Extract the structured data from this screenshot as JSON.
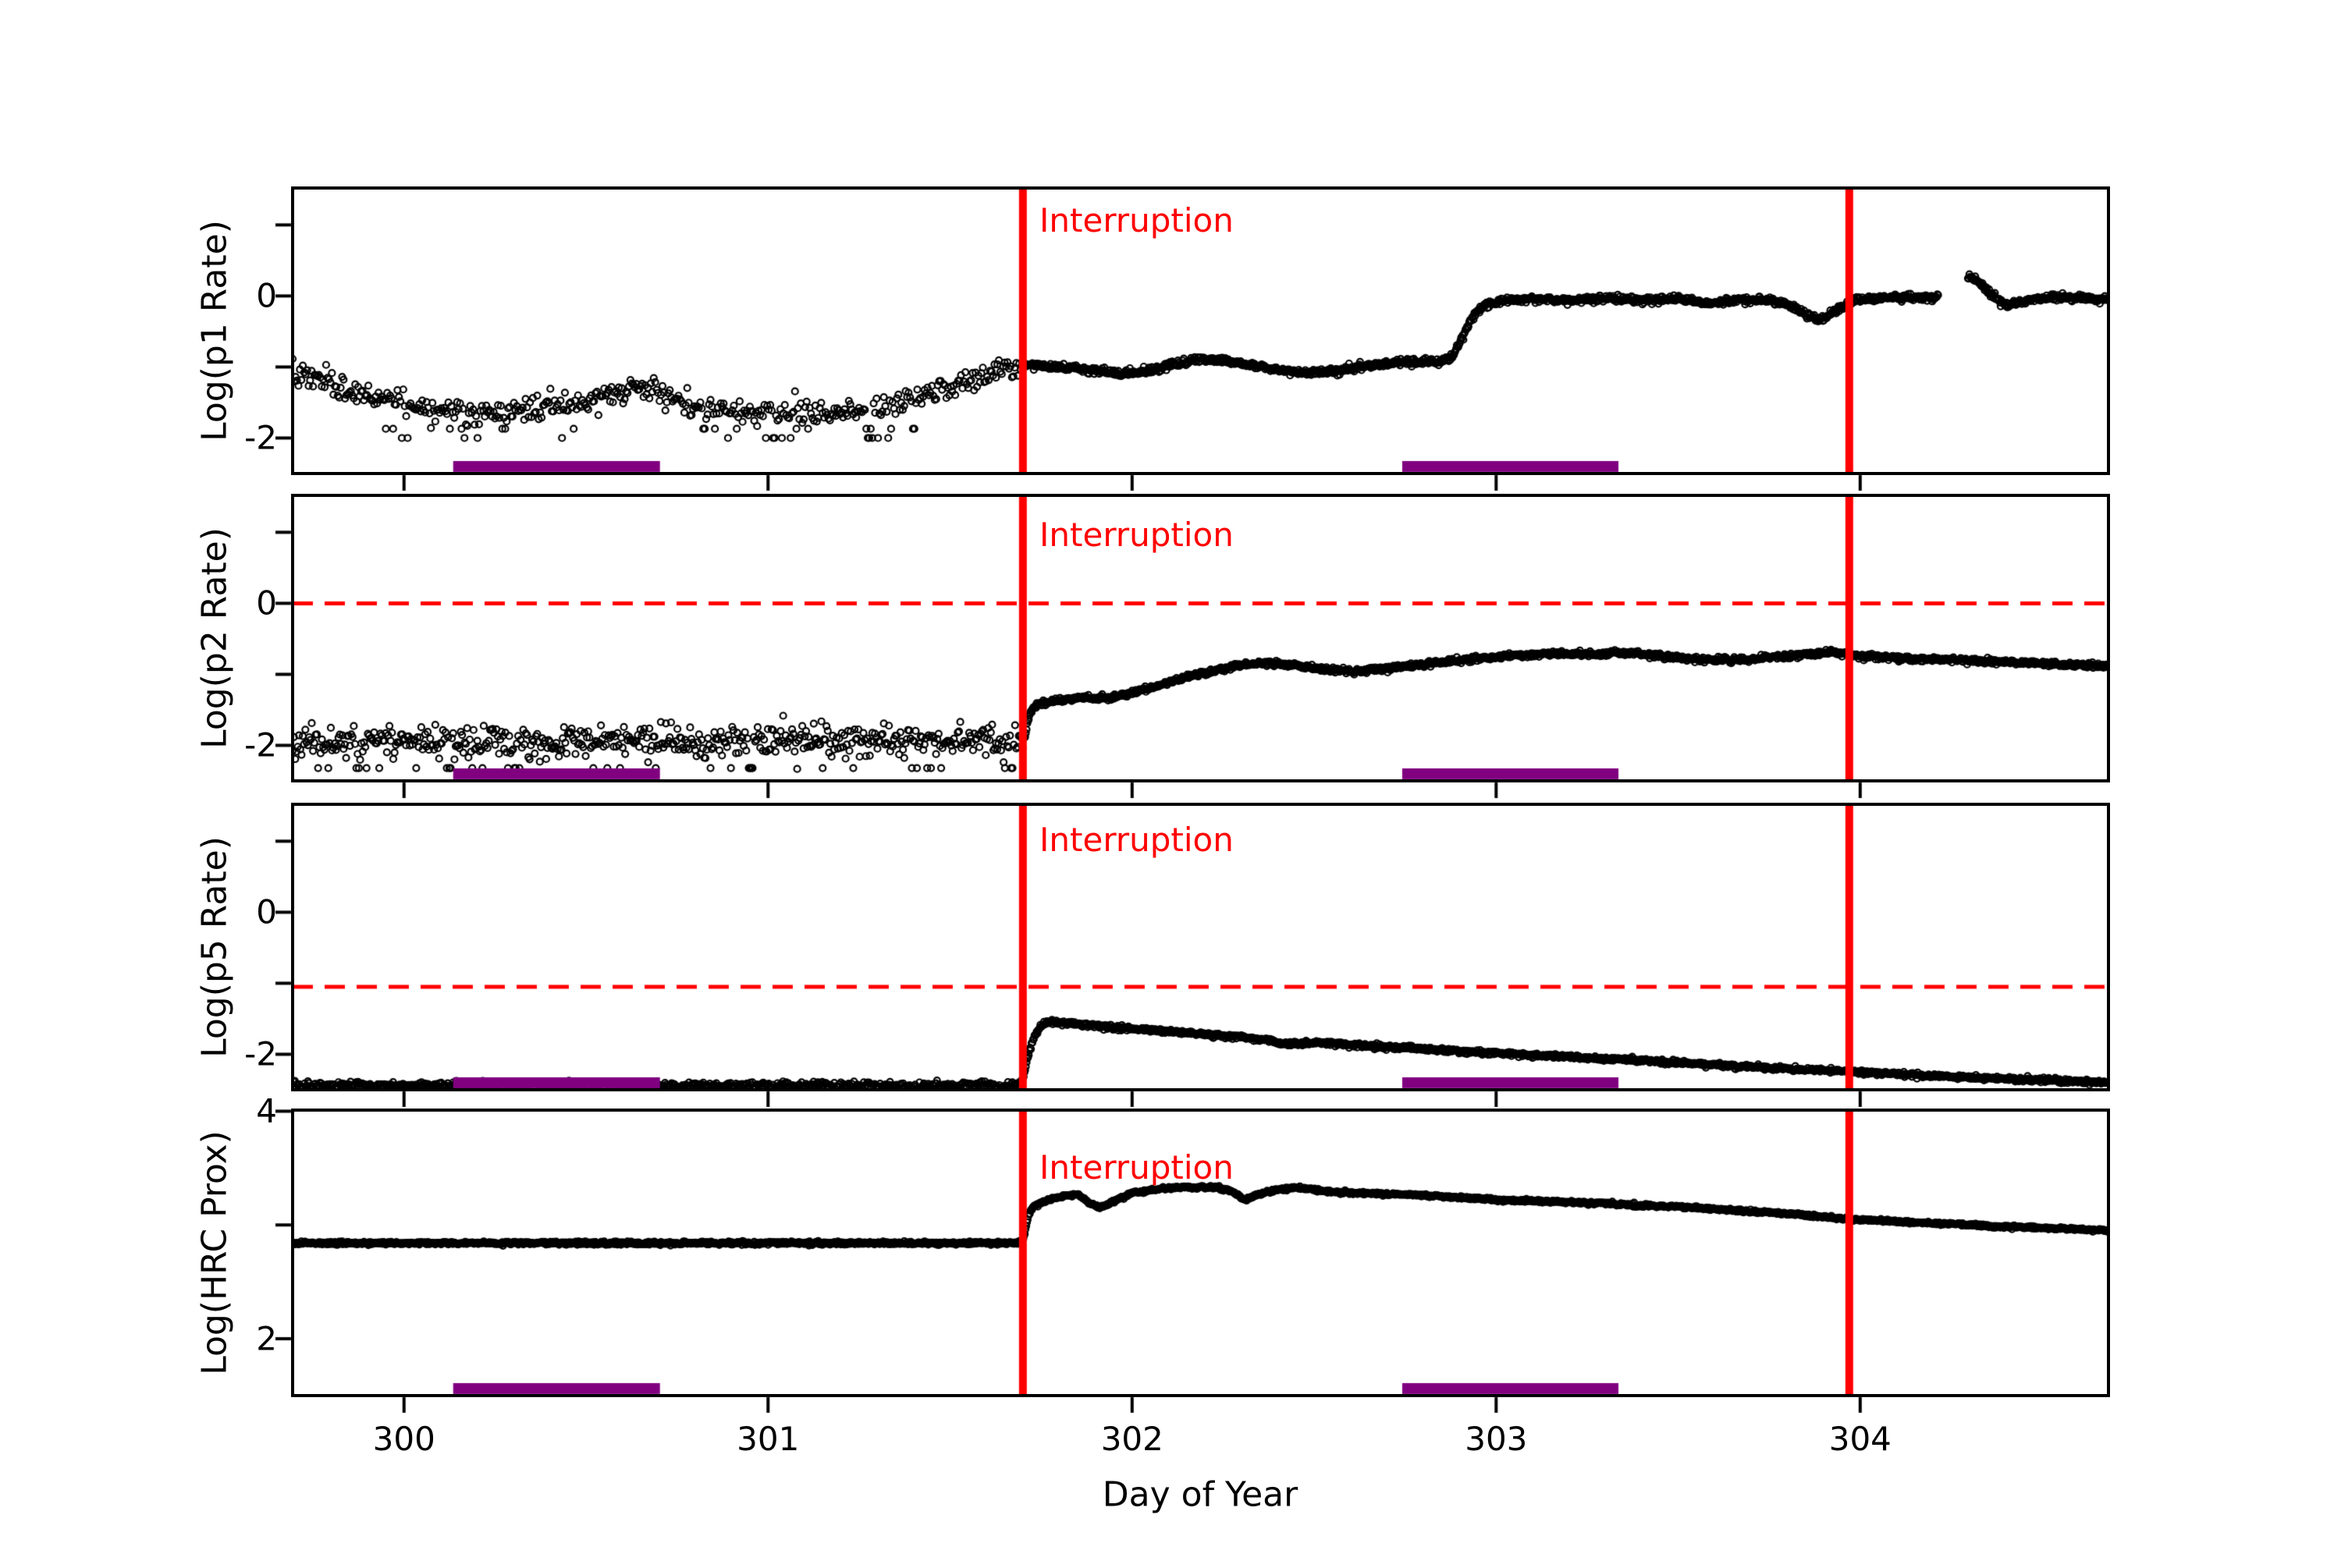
{
  "chart_data": {
    "type": "scatter",
    "title": "",
    "xlabel": "Day of Year",
    "xlim": [
      299.694,
      304.682
    ],
    "xticks": [
      {
        "v": 300,
        "label": "300"
      },
      {
        "v": 301,
        "label": "301"
      },
      {
        "v": 302,
        "label": "302"
      },
      {
        "v": 303,
        "label": "303"
      },
      {
        "v": 304,
        "label": "304"
      }
    ],
    "annotation_label": "Interruption",
    "marker_color": "#000000",
    "accent_red": "#ff0000",
    "band_color": "#800080",
    "vlines": [
      301.7,
      303.97
    ],
    "bands": [
      [
        300.135,
        300.703
      ],
      [
        302.742,
        303.336
      ]
    ],
    "panels": [
      {
        "ylabel": "Log(p1 Rate)",
        "ylim": [
          -2.5,
          1.52
        ],
        "yticks": [
          {
            "v": 1,
            "label": ""
          },
          {
            "v": 0,
            "label": "0"
          },
          {
            "v": -1,
            "label": ""
          },
          {
            "v": -2,
            "label": "-2"
          }
        ],
        "hline": null,
        "gaps": [
          [
            304.215,
            304.295
          ]
        ],
        "seed": 7,
        "segments": [
          {
            "x0": 299.694,
            "x1": 301.702,
            "step": 0.004,
            "sd": 0.085,
            "clamp_min": -2.05,
            "rows": [
              {
                "y": -1.87,
                "p": 0.07,
                "below": -1.45
              },
              {
                "y": -2.0,
                "p": 0.06,
                "below": -1.5
              }
            ]
          },
          {
            "x0": 301.702,
            "x1": 304.682,
            "step": 0.002,
            "sd": 0.022
          }
        ],
        "anchors": [
          [
            299.694,
            -1.12
          ],
          [
            299.75,
            -1.17
          ],
          [
            299.8,
            -1.25
          ],
          [
            299.88,
            -1.38
          ],
          [
            299.96,
            -1.48
          ],
          [
            300.04,
            -1.57
          ],
          [
            300.12,
            -1.62
          ],
          [
            300.22,
            -1.64
          ],
          [
            300.32,
            -1.63
          ],
          [
            300.42,
            -1.57
          ],
          [
            300.5,
            -1.48
          ],
          [
            300.57,
            -1.37
          ],
          [
            300.63,
            -1.3
          ],
          [
            300.68,
            -1.32
          ],
          [
            300.73,
            -1.45
          ],
          [
            300.8,
            -1.55
          ],
          [
            300.88,
            -1.62
          ],
          [
            300.97,
            -1.66
          ],
          [
            301.06,
            -1.64
          ],
          [
            301.15,
            -1.66
          ],
          [
            301.24,
            -1.62
          ],
          [
            301.32,
            -1.56
          ],
          [
            301.4,
            -1.46
          ],
          [
            301.48,
            -1.32
          ],
          [
            301.56,
            -1.16
          ],
          [
            301.63,
            -1.05
          ],
          [
            301.7,
            -0.97
          ],
          [
            301.75,
            -0.97
          ],
          [
            301.82,
            -1.01
          ],
          [
            301.9,
            -1.06
          ],
          [
            301.97,
            -1.09
          ],
          [
            302.04,
            -1.06
          ],
          [
            302.11,
            -0.97
          ],
          [
            302.18,
            -0.89
          ],
          [
            302.24,
            -0.9
          ],
          [
            302.31,
            -0.96
          ],
          [
            302.39,
            -1.03
          ],
          [
            302.47,
            -1.08
          ],
          [
            302.55,
            -1.06
          ],
          [
            302.63,
            -1.0
          ],
          [
            302.71,
            -0.95
          ],
          [
            302.78,
            -0.92
          ],
          [
            302.84,
            -0.94
          ],
          [
            302.88,
            -0.85
          ],
          [
            302.91,
            -0.55
          ],
          [
            302.94,
            -0.25
          ],
          [
            302.97,
            -0.12
          ],
          [
            303.02,
            -0.07
          ],
          [
            303.1,
            -0.04
          ],
          [
            303.2,
            -0.06
          ],
          [
            303.3,
            -0.03
          ],
          [
            303.4,
            -0.05
          ],
          [
            303.5,
            -0.04
          ],
          [
            303.58,
            -0.1
          ],
          [
            303.66,
            -0.07
          ],
          [
            303.74,
            -0.05
          ],
          [
            303.8,
            -0.12
          ],
          [
            303.86,
            -0.28
          ],
          [
            303.9,
            -0.33
          ],
          [
            303.94,
            -0.18
          ],
          [
            303.99,
            -0.05
          ],
          [
            304.05,
            -0.03
          ],
          [
            304.12,
            -0.02
          ],
          [
            304.2,
            -0.03
          ],
          [
            304.3,
            0.27
          ],
          [
            304.33,
            0.18
          ],
          [
            304.36,
            0.02
          ],
          [
            304.4,
            -0.15
          ],
          [
            304.44,
            -0.08
          ],
          [
            304.5,
            -0.03
          ],
          [
            304.58,
            -0.02
          ],
          [
            304.68,
            -0.05
          ]
        ]
      },
      {
        "ylabel": "Log(p2 Rate)",
        "ylim": [
          -2.5,
          1.52
        ],
        "yticks": [
          {
            "v": 1,
            "label": ""
          },
          {
            "v": 0,
            "label": "0"
          },
          {
            "v": -1,
            "label": ""
          },
          {
            "v": -2,
            "label": "-2"
          }
        ],
        "hline": 0.0,
        "gaps": [],
        "seed": 11,
        "segments": [
          {
            "x0": 299.694,
            "x1": 301.702,
            "step": 0.0035,
            "sd": 0.11,
            "clamp_min": -2.45,
            "rows": [
              {
                "y": -2.32,
                "p": 0.055,
                "below": 0
              }
            ]
          },
          {
            "x0": 301.702,
            "x1": 304.682,
            "step": 0.002,
            "sd": 0.018
          }
        ],
        "anchors": [
          [
            299.694,
            -1.95
          ],
          [
            301.69,
            -1.95
          ],
          [
            301.706,
            -1.88
          ],
          [
            301.712,
            -1.7
          ],
          [
            301.72,
            -1.55
          ],
          [
            301.73,
            -1.45
          ],
          [
            301.75,
            -1.4
          ],
          [
            301.8,
            -1.37
          ],
          [
            301.86,
            -1.32
          ],
          [
            301.93,
            -1.34
          ],
          [
            302.0,
            -1.26
          ],
          [
            302.06,
            -1.18
          ],
          [
            302.12,
            -1.08
          ],
          [
            302.18,
            -1.0
          ],
          [
            302.25,
            -0.92
          ],
          [
            302.31,
            -0.86
          ],
          [
            302.38,
            -0.84
          ],
          [
            302.45,
            -0.87
          ],
          [
            302.52,
            -0.93
          ],
          [
            302.6,
            -0.96
          ],
          [
            302.68,
            -0.93
          ],
          [
            302.76,
            -0.88
          ],
          [
            302.86,
            -0.82
          ],
          [
            302.96,
            -0.77
          ],
          [
            303.06,
            -0.73
          ],
          [
            303.16,
            -0.71
          ],
          [
            303.26,
            -0.72
          ],
          [
            303.34,
            -0.69
          ],
          [
            303.44,
            -0.74
          ],
          [
            303.54,
            -0.79
          ],
          [
            303.64,
            -0.8
          ],
          [
            303.74,
            -0.77
          ],
          [
            303.84,
            -0.72
          ],
          [
            303.92,
            -0.69
          ],
          [
            304.0,
            -0.74
          ],
          [
            304.1,
            -0.77
          ],
          [
            304.2,
            -0.79
          ],
          [
            304.32,
            -0.81
          ],
          [
            304.44,
            -0.84
          ],
          [
            304.56,
            -0.86
          ],
          [
            304.68,
            -0.88
          ]
        ]
      },
      {
        "ylabel": "Log(p5 Rate)",
        "ylim": [
          -2.5,
          1.52
        ],
        "yticks": [
          {
            "v": 1,
            "label": ""
          },
          {
            "v": 0,
            "label": "0"
          },
          {
            "v": -1,
            "label": ""
          },
          {
            "v": -2,
            "label": "-2"
          }
        ],
        "hline": -1.05,
        "gaps": [],
        "seed": 13,
        "segments": [
          {
            "x0": 299.694,
            "x1": 301.69,
            "step": 0.003,
            "sd": 0.025,
            "clamp_min": -2.487
          },
          {
            "x0": 301.69,
            "x1": 304.682,
            "step": 0.002,
            "sd": 0.015
          }
        ],
        "anchors": [
          [
            299.694,
            -2.44
          ],
          [
            301.685,
            -2.44
          ],
          [
            301.7,
            -2.36
          ],
          [
            301.706,
            -2.22
          ],
          [
            301.712,
            -2.08
          ],
          [
            301.72,
            -1.92
          ],
          [
            301.73,
            -1.78
          ],
          [
            301.745,
            -1.62
          ],
          [
            301.76,
            -1.56
          ],
          [
            301.78,
            -1.54
          ],
          [
            301.82,
            -1.57
          ],
          [
            301.9,
            -1.6
          ],
          [
            302.0,
            -1.64
          ],
          [
            302.1,
            -1.68
          ],
          [
            302.2,
            -1.72
          ],
          [
            302.3,
            -1.76
          ],
          [
            302.38,
            -1.8
          ],
          [
            302.42,
            -1.86
          ],
          [
            302.5,
            -1.83
          ],
          [
            302.58,
            -1.86
          ],
          [
            302.68,
            -1.89
          ],
          [
            302.78,
            -1.92
          ],
          [
            302.88,
            -1.95
          ],
          [
            302.98,
            -1.98
          ],
          [
            303.08,
            -2.01
          ],
          [
            303.18,
            -2.03
          ],
          [
            303.28,
            -2.06
          ],
          [
            303.38,
            -2.08
          ],
          [
            303.48,
            -2.11
          ],
          [
            303.58,
            -2.14
          ],
          [
            303.68,
            -2.17
          ],
          [
            303.78,
            -2.2
          ],
          [
            303.88,
            -2.22
          ],
          [
            303.98,
            -2.25
          ],
          [
            304.08,
            -2.27
          ],
          [
            304.18,
            -2.3
          ],
          [
            304.28,
            -2.32
          ],
          [
            304.38,
            -2.34
          ],
          [
            304.48,
            -2.36
          ],
          [
            304.58,
            -2.38
          ],
          [
            304.68,
            -2.4
          ]
        ]
      },
      {
        "ylabel": "Log(HRC Prox)",
        "ylim": [
          1.5,
          4.01
        ],
        "yticks": [
          {
            "v": 4,
            "label": "4"
          },
          {
            "v": 3,
            "label": ""
          },
          {
            "v": 2,
            "label": "2"
          }
        ],
        "hline": null,
        "gaps": [],
        "seed": 17,
        "segments": [
          {
            "x0": 299.694,
            "x1": 301.695,
            "step": 0.002,
            "sd": 0.007
          },
          {
            "x0": 301.695,
            "x1": 304.682,
            "step": 0.002,
            "sd": 0.006
          }
        ],
        "anchors": [
          [
            299.694,
            2.84
          ],
          [
            301.695,
            2.84
          ],
          [
            301.703,
            2.9
          ],
          [
            301.707,
            2.96
          ],
          [
            301.711,
            3.02
          ],
          [
            301.716,
            3.08
          ],
          [
            301.722,
            3.13
          ],
          [
            301.73,
            3.16
          ],
          [
            301.74,
            3.18
          ],
          [
            301.76,
            3.21
          ],
          [
            301.79,
            3.24
          ],
          [
            301.82,
            3.26
          ],
          [
            301.85,
            3.27
          ],
          [
            301.88,
            3.2
          ],
          [
            301.91,
            3.15
          ],
          [
            301.94,
            3.19
          ],
          [
            301.97,
            3.24
          ],
          [
            302.0,
            3.28
          ],
          [
            302.04,
            3.3
          ],
          [
            302.08,
            3.32
          ],
          [
            302.13,
            3.33
          ],
          [
            302.18,
            3.33
          ],
          [
            302.23,
            3.33
          ],
          [
            302.27,
            3.3
          ],
          [
            302.31,
            3.22
          ],
          [
            302.35,
            3.27
          ],
          [
            302.4,
            3.31
          ],
          [
            302.45,
            3.33
          ],
          [
            302.5,
            3.31
          ],
          [
            302.55,
            3.29
          ],
          [
            302.62,
            3.28
          ],
          [
            302.7,
            3.27
          ],
          [
            302.8,
            3.26
          ],
          [
            302.9,
            3.24
          ],
          [
            303.0,
            3.22
          ],
          [
            303.1,
            3.21
          ],
          [
            303.2,
            3.2
          ],
          [
            303.3,
            3.19
          ],
          [
            303.4,
            3.17
          ],
          [
            303.5,
            3.16
          ],
          [
            303.6,
            3.14
          ],
          [
            303.7,
            3.12
          ],
          [
            303.8,
            3.1
          ],
          [
            303.9,
            3.07
          ],
          [
            303.97,
            3.05
          ],
          [
            304.05,
            3.04
          ],
          [
            304.15,
            3.02
          ],
          [
            304.25,
            3.01
          ],
          [
            304.35,
            2.99
          ],
          [
            304.45,
            2.98
          ],
          [
            304.55,
            2.97
          ],
          [
            304.68,
            2.95
          ]
        ]
      }
    ]
  }
}
